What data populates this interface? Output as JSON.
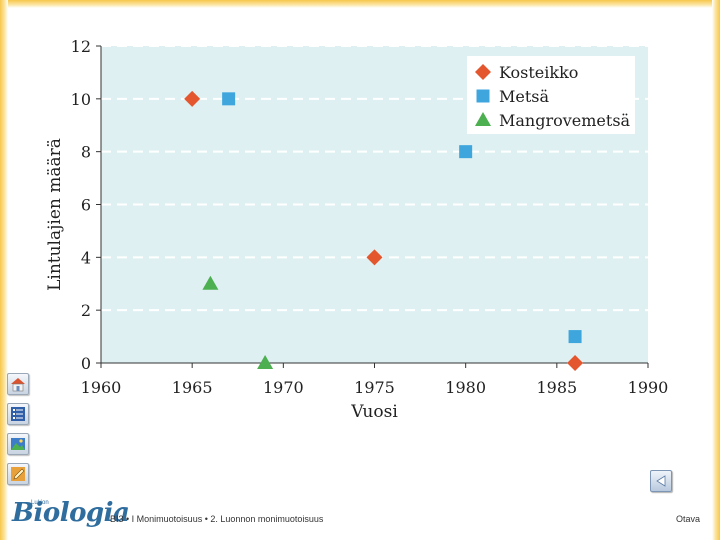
{
  "chart_data": {
    "type": "scatter",
    "title": "",
    "xlabel": "Vuosi",
    "ylabel": "Lintulajien määrä",
    "xlim": [
      1960,
      1990
    ],
    "ylim": [
      0,
      12
    ],
    "xticks": [
      1960,
      1965,
      1970,
      1975,
      1980,
      1985,
      1990
    ],
    "yticks": [
      0,
      2,
      4,
      6,
      8,
      10,
      12
    ],
    "grid": "horizontal dashed",
    "legend_position": "top-right",
    "background": "#dff0f2",
    "series": [
      {
        "name": "Kosteikko",
        "marker": "diamond",
        "color": "#e4572e",
        "points": [
          [
            1965,
            10
          ],
          [
            1975,
            4
          ],
          [
            1986,
            0
          ]
        ]
      },
      {
        "name": "Metsä",
        "marker": "square",
        "color": "#3ea6dd",
        "points": [
          [
            1967,
            10
          ],
          [
            1980,
            8
          ],
          [
            1986,
            1
          ]
        ]
      },
      {
        "name": "Mangrovemetsä",
        "marker": "triangle",
        "color": "#4caf50",
        "points": [
          [
            1966,
            3
          ],
          [
            1969,
            0
          ]
        ]
      }
    ]
  },
  "footer": {
    "logo_small": "Lukion",
    "logo": "Biologia",
    "course_text": "BI3 • I Monimuotoisuus • 2. Luonnon monimuotoisuus",
    "publisher": "Otava"
  },
  "navigation": {
    "side_buttons": [
      "home-icon",
      "list-icon",
      "image-icon",
      "pencil-icon"
    ],
    "back_button": "back-arrow-icon"
  }
}
